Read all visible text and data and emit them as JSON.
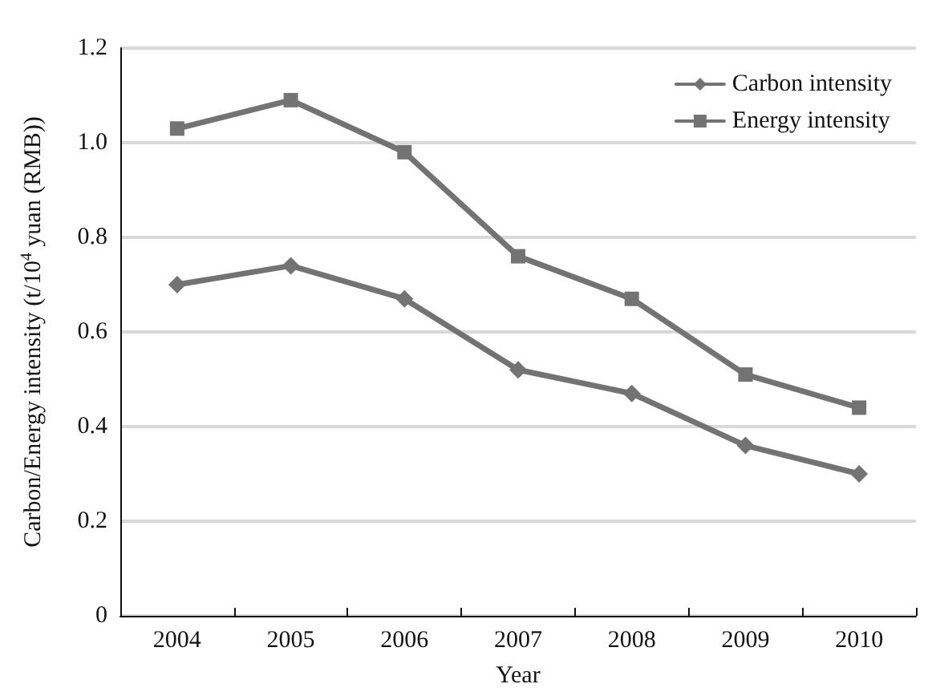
{
  "chart_data": {
    "type": "line",
    "xlabel": "Year",
    "ylabel": "Carbon/Energy intensity (t/10$^{4}$ yuan (RMB))",
    "categories": [
      "2004",
      "2005",
      "2006",
      "2007",
      "2008",
      "2009",
      "2010"
    ],
    "series": [
      {
        "name": "Carbon intensity",
        "color": "#737373",
        "marker": "diamond",
        "values": [
          0.7,
          0.74,
          0.67,
          0.52,
          0.47,
          0.36,
          0.3
        ]
      },
      {
        "name": "Energy intensity",
        "color": "#737373",
        "marker": "square",
        "values": [
          1.03,
          1.09,
          0.98,
          0.76,
          0.67,
          0.51,
          0.44
        ]
      }
    ],
    "ylim": [
      0,
      1.2
    ],
    "yticks": [
      0,
      0.2,
      0.4,
      0.6,
      0.8,
      {
        "value": 1,
        "label": "1.0"
      },
      1.2
    ],
    "grid": "y",
    "legend": "top right",
    "line_style": "solid"
  }
}
